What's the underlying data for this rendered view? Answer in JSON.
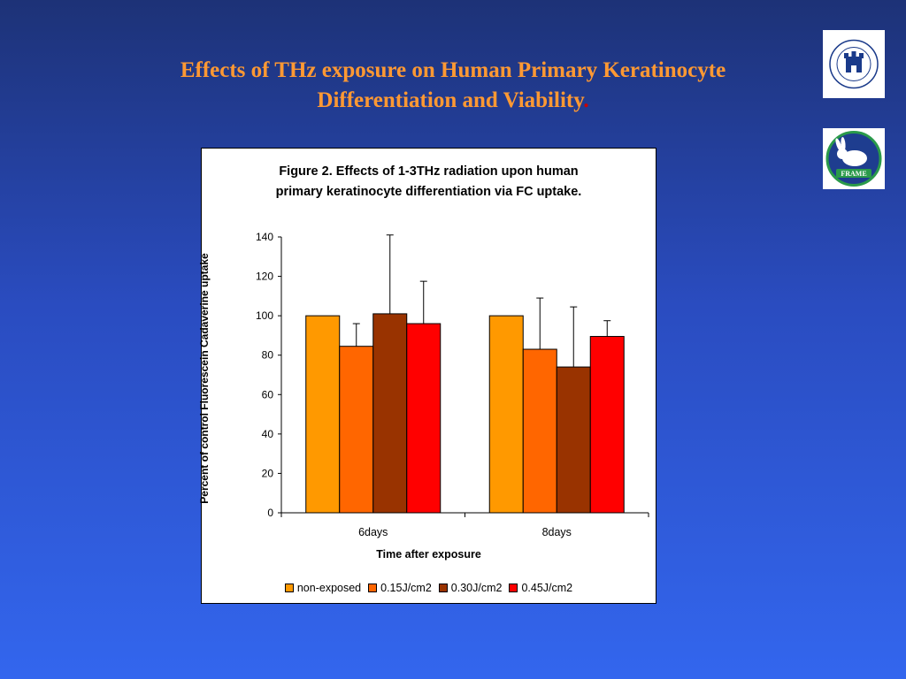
{
  "slide": {
    "title_line1": "Effects of THz exposure on Human Primary Keratinocyte",
    "title_line2": "Differentiation and Viability",
    "title_dot": ".",
    "logo_frame_text": "FRAME"
  },
  "colors": {
    "title": "#ff9933",
    "non_exposed": "#ff9900",
    "j015": "#ff6600",
    "j030": "#993300",
    "j045": "#ff0000"
  },
  "chart_data": {
    "type": "bar",
    "title_line1": "Figure 2. Effects of 1-3THz radiation upon human",
    "title_line2": "primary keratinocyte differentiation via FC uptake.",
    "ylabel": "Percent of control Fluorescein Cadaverine uptake",
    "xlabel": "Time after exposure",
    "ylim": [
      0,
      140
    ],
    "yticks": [
      "0",
      "20",
      "40",
      "60",
      "80",
      "100",
      "120",
      "140"
    ],
    "categories": [
      "6days",
      "8days"
    ],
    "legend_position": "bottom",
    "grid": false,
    "series": [
      {
        "name": "non-exposed",
        "color": "#ff9900",
        "values": [
          100,
          100
        ],
        "errors": [
          0,
          0
        ]
      },
      {
        "name": "0.15J/cm2",
        "color": "#ff6600",
        "values": [
          84.5,
          83
        ],
        "errors": [
          11.5,
          26
        ]
      },
      {
        "name": "0.30J/cm2",
        "color": "#993300",
        "values": [
          101,
          74
        ],
        "errors": [
          40,
          30.5
        ]
      },
      {
        "name": "0.45J/cm2",
        "color": "#ff0000",
        "values": [
          96,
          89.5
        ],
        "errors": [
          21.5,
          8
        ]
      }
    ]
  }
}
